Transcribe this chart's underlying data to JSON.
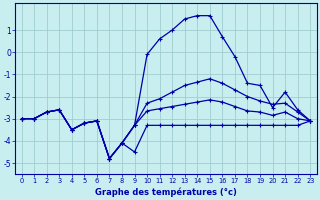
{
  "xlabel": "Graphe des températures (°c)",
  "bg_color": "#c8eef0",
  "grid_color": "#a0ccd0",
  "line_color": "#0000aa",
  "x": [
    0,
    1,
    2,
    3,
    4,
    5,
    6,
    7,
    8,
    9,
    10,
    11,
    12,
    13,
    14,
    15,
    16,
    17,
    18,
    19,
    20,
    21,
    22,
    23
  ],
  "series_peak": [
    -3.0,
    -3.0,
    -2.7,
    -2.6,
    -3.5,
    -3.2,
    -3.1,
    -4.8,
    -4.1,
    -3.3,
    -0.1,
    0.6,
    1.0,
    1.5,
    1.65,
    1.65,
    0.7,
    -0.2,
    -1.4,
    -1.5,
    -2.5,
    -1.8,
    -2.6,
    -3.1
  ],
  "series_mid": [
    -3.0,
    -3.0,
    -2.7,
    -2.6,
    -3.5,
    -3.2,
    -3.1,
    -4.8,
    -4.1,
    -3.3,
    -2.3,
    -2.1,
    -1.8,
    -1.5,
    -1.35,
    -1.2,
    -1.4,
    -1.7,
    -2.0,
    -2.2,
    -2.35,
    -2.3,
    -2.7,
    -3.1
  ],
  "series_slow": [
    -3.0,
    -3.0,
    -2.7,
    -2.6,
    -3.5,
    -3.2,
    -3.1,
    -4.8,
    -4.1,
    -3.3,
    -2.65,
    -2.55,
    -2.45,
    -2.35,
    -2.25,
    -2.15,
    -2.25,
    -2.45,
    -2.65,
    -2.7,
    -2.85,
    -2.7,
    -3.0,
    -3.1
  ],
  "series_flat": [
    -3.0,
    -3.0,
    -2.7,
    -2.6,
    -3.5,
    -3.2,
    -3.1,
    -4.8,
    -4.1,
    -4.5,
    -3.3,
    -3.3,
    -3.3,
    -3.3,
    -3.3,
    -3.3,
    -3.3,
    -3.3,
    -3.3,
    -3.3,
    -3.3,
    -3.3,
    -3.3,
    -3.1
  ],
  "ylim": [
    -5.5,
    2.2
  ],
  "yticks": [
    -5,
    -4,
    -3,
    -2,
    -1,
    0,
    1
  ],
  "xlim": [
    -0.5,
    23.5
  ]
}
